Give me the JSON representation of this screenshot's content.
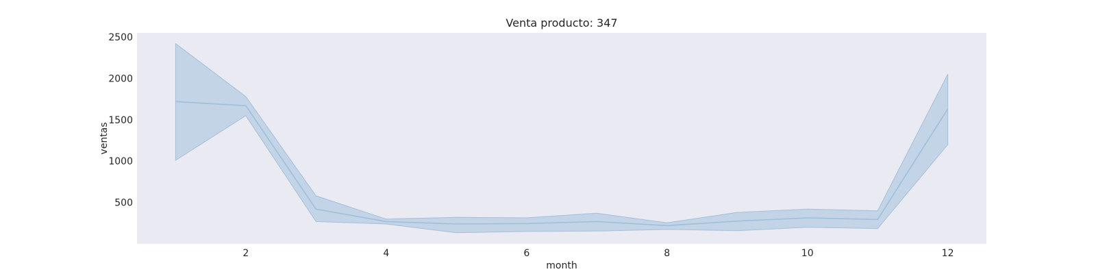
{
  "chart_data": {
    "type": "line",
    "title": "Venta producto: 347",
    "xlabel": "month",
    "ylabel": "ventas",
    "xlim": [
      0.45,
      12.55
    ],
    "ylim": [
      0,
      2550
    ],
    "xticks": [
      2,
      4,
      6,
      8,
      10,
      12
    ],
    "yticks": [
      500,
      1000,
      1500,
      2000,
      2500
    ],
    "grid": false,
    "legend": "none",
    "x": [
      1,
      2,
      3,
      4,
      5,
      6,
      7,
      8,
      9,
      10,
      11,
      12
    ],
    "series": [
      {
        "values": [
          1720,
          1670,
          420,
          270,
          240,
          245,
          270,
          220,
          275,
          315,
          295,
          1630
        ],
        "ci_low": [
          1010,
          1550,
          270,
          240,
          135,
          150,
          155,
          175,
          160,
          200,
          185,
          1200
        ],
        "ci_high": [
          2420,
          1780,
          580,
          300,
          320,
          315,
          370,
          255,
          380,
          420,
          400,
          2050
        ]
      }
    ],
    "colors": {
      "plot_background": "#eaeaf2",
      "line": "#9fbfdb",
      "band_fill": "#b6cce2",
      "band_edge": "#a3c0dc",
      "text": "#262626"
    }
  }
}
